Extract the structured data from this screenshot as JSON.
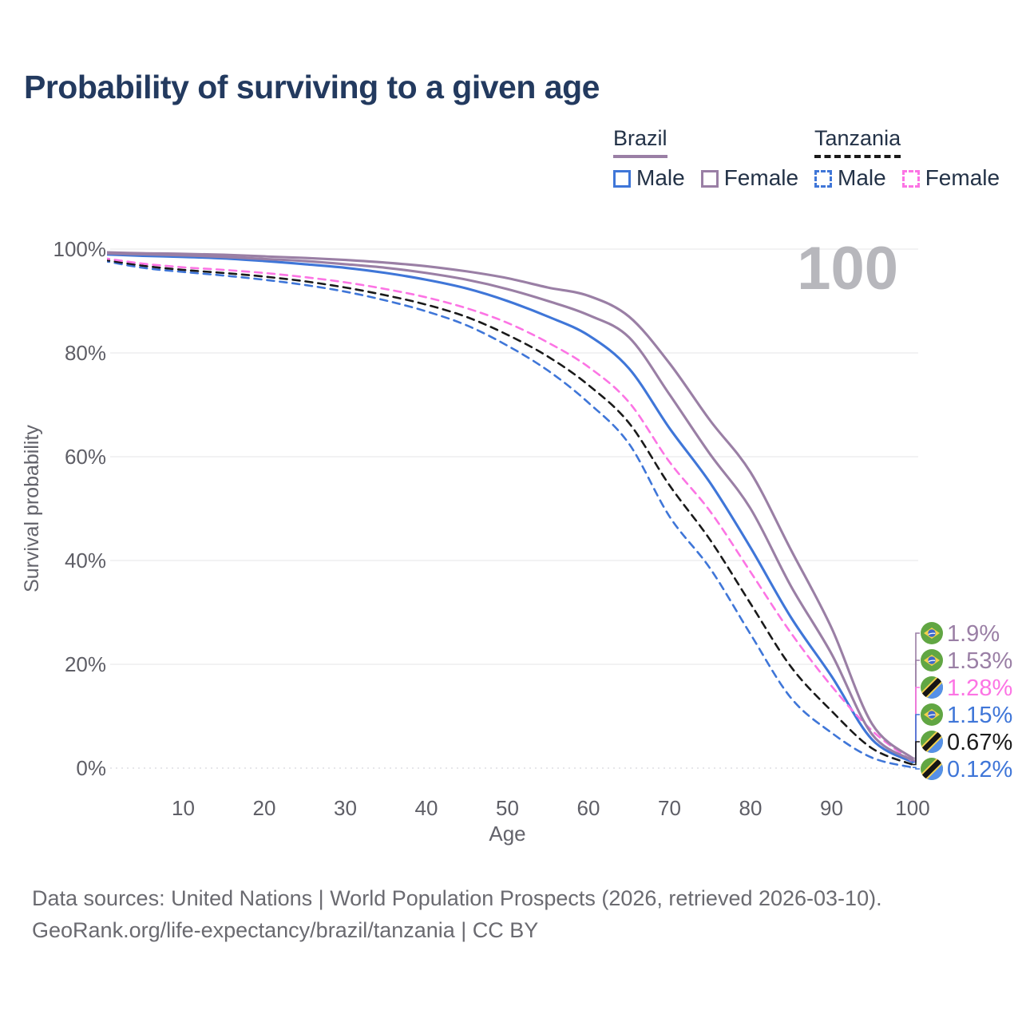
{
  "title": "Probability of surviving to a given age",
  "watermark_age": "100",
  "legend": {
    "groups": [
      {
        "country": "Brazil",
        "underline_color": "#9a7fa5",
        "underline_style": "solid",
        "items": [
          {
            "label": "Male",
            "color": "#3f76d8",
            "style": "solid"
          },
          {
            "label": "Female",
            "color": "#9a7fa5",
            "style": "solid"
          }
        ]
      },
      {
        "country": "Tanzania",
        "underline_color": "#1a1a1a",
        "underline_style": "dashed",
        "items": [
          {
            "label": "Male",
            "color": "#3f76d8",
            "style": "dashed"
          },
          {
            "label": "Female",
            "color": "#fc74e4",
            "style": "dashed"
          }
        ]
      }
    ]
  },
  "chart_data": {
    "type": "line",
    "title": "Probability of surviving to a given age",
    "xlabel": "Age",
    "ylabel": "Survival probability",
    "xlim": [
      0,
      100
    ],
    "ylim": [
      0,
      100
    ],
    "grid": "horizontal-only",
    "legend_position": "top-right",
    "x_ticks": [
      10,
      20,
      30,
      40,
      50,
      60,
      70,
      80,
      90,
      100
    ],
    "y_ticks": [
      {
        "value": 0,
        "label": "0%"
      },
      {
        "value": 20,
        "label": "20%"
      },
      {
        "value": 40,
        "label": "40%"
      },
      {
        "value": 60,
        "label": "60%"
      },
      {
        "value": 80,
        "label": "80%"
      },
      {
        "value": 100,
        "label": "100%"
      }
    ],
    "ages": [
      0,
      5,
      10,
      15,
      20,
      25,
      30,
      35,
      40,
      45,
      50,
      55,
      60,
      65,
      70,
      75,
      80,
      85,
      90,
      95,
      100
    ],
    "series": [
      {
        "name": "Brazil Female",
        "country": "Brazil",
        "sex": "Female",
        "color": "#9a7fa5",
        "line_style": "solid",
        "flag": "brazil",
        "end_label": "1.9%",
        "end_value": 1.9,
        "values": [
          99.4,
          99.2,
          99.1,
          98.9,
          98.6,
          98.3,
          97.9,
          97.4,
          96.7,
          95.7,
          94.4,
          92.6,
          91.0,
          87.0,
          78.0,
          67.0,
          57.0,
          42.0,
          27.0,
          8.5,
          1.9
        ]
      },
      {
        "name": "Brazil",
        "country": "Brazil",
        "sex": "Both",
        "color": "#9a7fa5",
        "line_style": "solid",
        "flag": "brazil",
        "end_label": "1.53%",
        "end_value": 1.53,
        "values": [
          99.2,
          99.0,
          98.8,
          98.5,
          98.1,
          97.7,
          97.1,
          96.4,
          95.4,
          94.1,
          92.3,
          90.0,
          87.3,
          83.0,
          72.0,
          60.5,
          50.0,
          35.0,
          22.0,
          6.5,
          1.53
        ]
      },
      {
        "name": "Tanzania Female",
        "country": "Tanzania",
        "sex": "Female",
        "color": "#fc74e4",
        "line_style": "dashed",
        "flag": "tanzania",
        "end_label": "1.28%",
        "end_value": 1.28,
        "values": [
          98.3,
          97.2,
          96.5,
          96.0,
          95.4,
          94.6,
          93.6,
          92.3,
          90.7,
          88.6,
          85.8,
          82.0,
          77.3,
          70.5,
          59.0,
          49.5,
          37.8,
          26.0,
          15.8,
          7.2,
          1.28
        ]
      },
      {
        "name": "Brazil Male",
        "country": "Brazil",
        "sex": "Male",
        "color": "#3f76d8",
        "line_style": "solid",
        "flag": "brazil",
        "end_label": "1.15%",
        "end_value": 1.15,
        "values": [
          99.0,
          98.7,
          98.5,
          98.2,
          97.7,
          97.1,
          96.4,
          95.4,
          94.1,
          92.4,
          90.0,
          87.0,
          83.4,
          77.0,
          65.5,
          55.0,
          42.5,
          29.0,
          17.7,
          5.5,
          1.15
        ]
      },
      {
        "name": "Tanzania",
        "country": "Tanzania",
        "sex": "Both",
        "color": "#1a1a1a",
        "line_style": "dashed",
        "flag": "tanzania",
        "end_label": "0.67%",
        "end_value": 0.67,
        "values": [
          98.0,
          96.8,
          96.0,
          95.4,
          94.7,
          93.8,
          92.6,
          91.1,
          89.3,
          86.9,
          83.5,
          79.3,
          73.8,
          66.5,
          54.5,
          44.0,
          31.7,
          19.5,
          11.0,
          3.8,
          0.67
        ]
      },
      {
        "name": "Tanzania Male",
        "country": "Tanzania",
        "sex": "Male",
        "color": "#3f76d8",
        "line_style": "dashed",
        "flag": "tanzania",
        "end_label": "0.12%",
        "end_value": 0.12,
        "values": [
          97.8,
          96.4,
          95.6,
          94.9,
          94.1,
          93.1,
          91.8,
          90.1,
          88.0,
          85.3,
          81.4,
          76.6,
          70.4,
          62.5,
          48.5,
          38.5,
          25.8,
          13.5,
          6.8,
          2.0,
          0.12
        ]
      }
    ]
  },
  "footer": {
    "line1": "Data sources: United Nations | World Population Prospects (2026, retrieved 2026-03-10).",
    "line2": "GeoRank.org/life-expectancy/brazil/tanzania | CC BY"
  },
  "colors": {
    "title": "#233a5f",
    "grid": "#e9e9ec",
    "zero_line": "#d8d8dd",
    "tick_text": "#5e5e66",
    "axis_title": "#63636b",
    "watermark": "#b7b7bc",
    "footer": "#6a6a70"
  }
}
